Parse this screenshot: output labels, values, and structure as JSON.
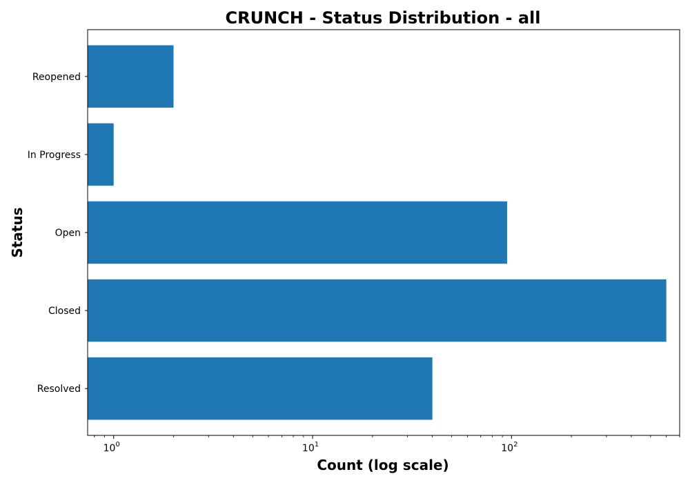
{
  "chart_data": {
    "type": "bar",
    "orientation": "horizontal",
    "title": "CRUNCH - Status Distribution - all",
    "xlabel": "Count (log scale)",
    "ylabel": "Status",
    "x_scale": "log",
    "xlim": [
      0.74,
      700
    ],
    "categories": [
      "Resolved",
      "Closed",
      "Open",
      "In Progress",
      "Reopened"
    ],
    "values": [
      40,
      600,
      95,
      1,
      2
    ],
    "x_ticks": [
      {
        "base": "10",
        "exp": "0",
        "value": 1
      },
      {
        "base": "10",
        "exp": "1",
        "value": 10
      },
      {
        "base": "10",
        "exp": "2",
        "value": 100
      }
    ],
    "bar_color": "#1f77b4",
    "grid": false,
    "legend": "none"
  }
}
